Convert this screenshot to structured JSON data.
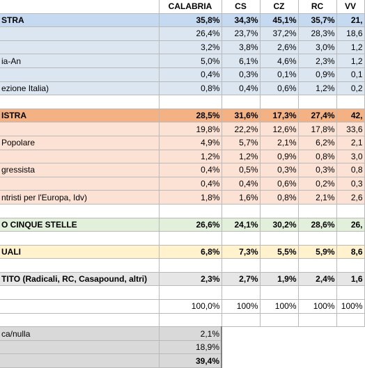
{
  "header": {
    "col0": "",
    "col1": "CALABRIA",
    "col2": "CS",
    "col3": "CZ",
    "col4": "RC",
    "col5": "VV"
  },
  "rows": [
    {
      "kind": "cdx",
      "label": "STRA",
      "v": [
        "35,8%",
        "34,3%",
        "45,1%",
        "35,7%",
        "21,"
      ]
    },
    {
      "kind": "cdx-sub",
      "label": "",
      "v": [
        "26,4%",
        "23,7%",
        "37,2%",
        "28,3%",
        "18,6"
      ]
    },
    {
      "kind": "cdx-sub",
      "label": "",
      "v": [
        "3,2%",
        "3,8%",
        "2,6%",
        "3,0%",
        "1,2"
      ]
    },
    {
      "kind": "cdx-sub",
      "label": "ia-An",
      "v": [
        "5,0%",
        "6,1%",
        "4,6%",
        "2,3%",
        "1,2"
      ]
    },
    {
      "kind": "cdx-sub",
      "label": "",
      "v": [
        "0,4%",
        "0,3%",
        "0,1%",
        "0,9%",
        "0,1"
      ]
    },
    {
      "kind": "cdx-sub",
      "label": "ezione Italia)",
      "v": [
        "0,8%",
        "0,4%",
        "0,6%",
        "1,2%",
        "0,2"
      ]
    },
    {
      "kind": "blank",
      "label": "",
      "v": [
        "",
        "",
        "",
        "",
        ""
      ]
    },
    {
      "kind": "csx",
      "label": "ISTRA",
      "v": [
        "28,5%",
        "31,6%",
        "17,3%",
        "27,4%",
        "42,"
      ]
    },
    {
      "kind": "csx-sub",
      "label": "",
      "v": [
        "19,8%",
        "22,2%",
        "12,6%",
        "17,8%",
        "33,6"
      ]
    },
    {
      "kind": "csx-sub",
      "label": "Popolare",
      "v": [
        "4,9%",
        "5,7%",
        "2,1%",
        "6,2%",
        "2,1"
      ]
    },
    {
      "kind": "csx-sub",
      "label": "",
      "v": [
        "1,2%",
        "1,2%",
        "0,9%",
        "0,8%",
        "3,0"
      ]
    },
    {
      "kind": "csx-sub",
      "label": "gressista",
      "v": [
        "0,4%",
        "0,5%",
        "0,3%",
        "0,3%",
        "0,8"
      ]
    },
    {
      "kind": "csx-sub",
      "label": "",
      "v": [
        "0,4%",
        "0,4%",
        "0,6%",
        "0,2%",
        "0,3"
      ]
    },
    {
      "kind": "csx-sub",
      "label": "ntristi per l'Europa, Idv)",
      "v": [
        "1,8%",
        "1,6%",
        "0,8%",
        "2,1%",
        "2,6"
      ]
    },
    {
      "kind": "blank",
      "label": "",
      "v": [
        "",
        "",
        "",
        "",
        ""
      ]
    },
    {
      "kind": "m5s",
      "label": "O CINQUE STELLE",
      "v": [
        "26,6%",
        "24,1%",
        "30,2%",
        "28,6%",
        "26,"
      ]
    },
    {
      "kind": "blank",
      "label": "",
      "v": [
        "",
        "",
        "",
        "",
        ""
      ]
    },
    {
      "kind": "ind",
      "label": "UALI",
      "v": [
        "6,8%",
        "7,3%",
        "5,5%",
        "5,9%",
        "8,6"
      ]
    },
    {
      "kind": "blank",
      "label": "",
      "v": [
        "",
        "",
        "",
        "",
        ""
      ]
    },
    {
      "kind": "oth",
      "label": "TITO (Radicali, RC, Casapound, altri)",
      "v": [
        "2,3%",
        "2,7%",
        "1,9%",
        "2,4%",
        "1,6"
      ]
    },
    {
      "kind": "blank",
      "label": "",
      "v": [
        "",
        "",
        "",
        "",
        ""
      ]
    },
    {
      "kind": "plain",
      "label": "",
      "v": [
        "100,0%",
        "100%",
        "100%",
        "100%",
        "100%"
      ]
    },
    {
      "kind": "blank",
      "label": "",
      "v": [
        "",
        "",
        "",
        "",
        ""
      ]
    }
  ],
  "footer": [
    {
      "label": "ca/nulla",
      "value": "2,1%"
    },
    {
      "label": "",
      "value": "18,9%"
    },
    {
      "label": "",
      "value": "39,4%"
    }
  ]
}
